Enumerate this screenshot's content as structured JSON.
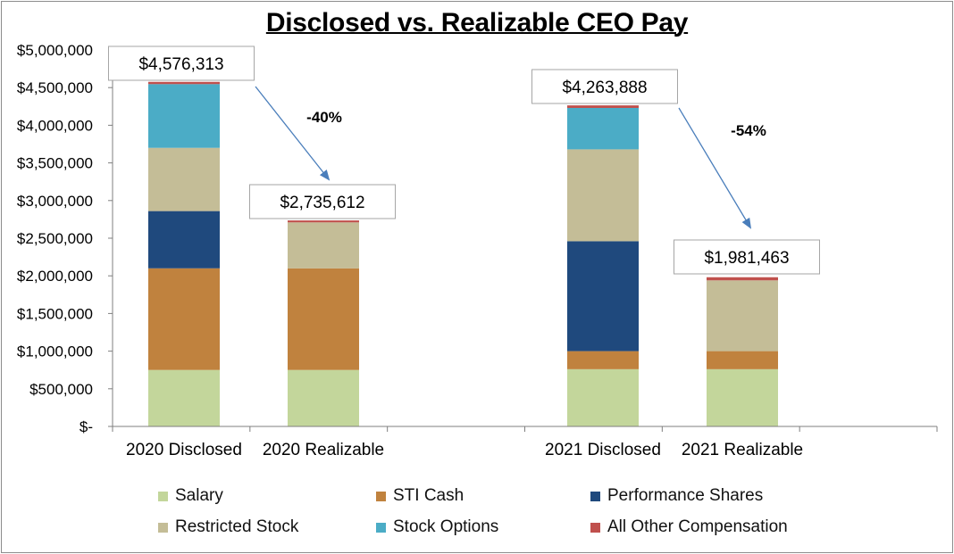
{
  "chart_data": {
    "type": "bar",
    "stacked": true,
    "title": "Disclosed vs. Realizable CEO Pay",
    "categories": [
      "2020 Disclosed",
      "2020 Realizable",
      "",
      "2021 Disclosed",
      "2021 Realizable",
      ""
    ],
    "ylim": [
      0,
      5000000
    ],
    "ytick_values": [
      0,
      500000,
      1000000,
      1500000,
      2000000,
      2500000,
      3000000,
      3500000,
      4000000,
      4500000,
      5000000
    ],
    "ytick_labels": [
      "$-",
      "$500,000",
      "$1,000,000",
      "$1,500,000",
      "$2,000,000",
      "$2,500,000",
      "$3,000,000",
      "$3,500,000",
      "$4,000,000",
      "$4,500,000",
      "$5,000,000"
    ],
    "series": [
      {
        "name": "Salary",
        "color": "#c3d69b",
        "values": [
          750000,
          750000,
          0,
          760000,
          760000,
          0
        ]
      },
      {
        "name": "STI Cash",
        "color": "#c0823e",
        "values": [
          1350000,
          1350000,
          0,
          240000,
          240000,
          0
        ]
      },
      {
        "name": "Performance Shares",
        "color": "#1f497d",
        "values": [
          760000,
          0,
          0,
          1460000,
          0,
          0
        ]
      },
      {
        "name": "Restricted Stock",
        "color": "#c4bd97",
        "values": [
          840000,
          610000,
          0,
          1220000,
          940000,
          0
        ]
      },
      {
        "name": "Stock Options",
        "color": "#4bacc6",
        "values": [
          846313,
          0,
          0,
          550000,
          0,
          0
        ]
      },
      {
        "name": "All Other Compensation",
        "color": "#c0504d",
        "values": [
          30000,
          25612,
          0,
          33888,
          41463,
          0
        ]
      }
    ],
    "totals": [
      "$4,576,313",
      "$2,735,612",
      "",
      "$4,263,888",
      "$1,981,463",
      ""
    ],
    "annotations": [
      {
        "text": "-40%",
        "from": "2020 Disclosed",
        "to": "2020 Realizable"
      },
      {
        "text": "-54%",
        "from": "2021 Disclosed",
        "to": "2021 Realizable"
      }
    ],
    "legend_position": "bottom"
  }
}
